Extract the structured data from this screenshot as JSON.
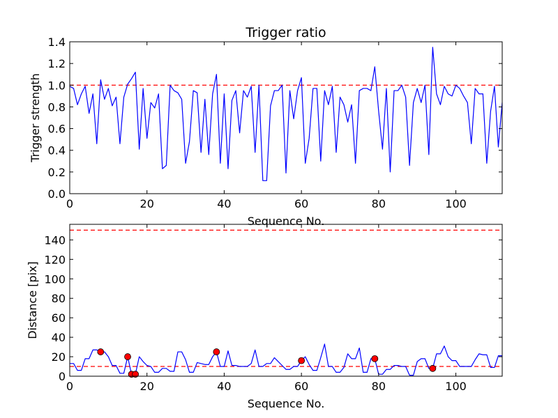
{
  "chart_data": [
    {
      "type": "line",
      "title": "Trigger ratio",
      "xlabel": "Sequence No.",
      "ylabel": "Trigger strength",
      "xlim": [
        0,
        112
      ],
      "ylim": [
        0,
        1.4
      ],
      "xticks": [
        "0",
        "20",
        "40",
        "60",
        "80",
        "100"
      ],
      "yticks": [
        "0.0",
        "0.2",
        "0.4",
        "0.6",
        "0.8",
        "1.0",
        "1.2",
        "1.4"
      ],
      "line_color": "#0000ff",
      "threshold": {
        "value": 1.0,
        "color": "#ff0000",
        "style": "dashed"
      },
      "series": [
        {
          "x": [
            0,
            1,
            2,
            3,
            4,
            5,
            6,
            7,
            8,
            9,
            10,
            11,
            12,
            13,
            14,
            15,
            16,
            17,
            18,
            19,
            20,
            21,
            22,
            23,
            24,
            25,
            26,
            27,
            28,
            29,
            30,
            31,
            32,
            33,
            34,
            35,
            36,
            37,
            38,
            39,
            40,
            41,
            42,
            43,
            44,
            45,
            46,
            47,
            48,
            49,
            50,
            51,
            52,
            53,
            54,
            55,
            56,
            57,
            58,
            59,
            60,
            61,
            62,
            63,
            64,
            65,
            66,
            67,
            68,
            69,
            70,
            71,
            72,
            73,
            74,
            75,
            76,
            77,
            78,
            79,
            80,
            81,
            82,
            83,
            84,
            85,
            86,
            87,
            88,
            89,
            90,
            91,
            92,
            93,
            94,
            95,
            96,
            97,
            98,
            99,
            100,
            101,
            102,
            103,
            104,
            105,
            106,
            107,
            108,
            109,
            110,
            111,
            112
          ],
          "y": [
            0.99,
            0.97,
            0.82,
            0.92,
            0.99,
            0.74,
            0.92,
            0.46,
            1.05,
            0.87,
            0.97,
            0.81,
            0.89,
            0.46,
            0.89,
            1.01,
            1.06,
            1.12,
            0.41,
            0.97,
            0.51,
            0.84,
            0.79,
            0.92,
            0.23,
            0.26,
            1.0,
            0.95,
            0.93,
            0.87,
            0.28,
            0.48,
            0.95,
            0.93,
            0.38,
            0.87,
            0.36,
            0.92,
            1.1,
            0.28,
            0.92,
            0.23,
            0.86,
            0.95,
            0.56,
            0.95,
            0.89,
            0.99,
            0.38,
            1.0,
            0.12,
            0.12,
            0.81,
            0.95,
            0.95,
            1.0,
            0.19,
            0.95,
            0.69,
            0.95,
            1.07,
            0.28,
            0.51,
            0.97,
            0.97,
            0.3,
            0.95,
            0.82,
            0.99,
            0.38,
            0.89,
            0.82,
            0.66,
            0.82,
            0.28,
            0.95,
            0.97,
            0.97,
            0.95,
            1.17,
            0.76,
            0.41,
            0.97,
            0.2,
            0.95,
            0.95,
            1.0,
            0.89,
            0.26,
            0.84,
            0.97,
            0.84,
            1.0,
            0.36,
            1.35,
            0.92,
            0.82,
            0.99,
            0.92,
            0.9,
            1.0,
            0.97,
            0.9,
            0.84,
            0.46,
            0.97,
            0.92,
            0.92,
            0.28,
            0.76,
            0.99,
            0.43,
            0.84
          ]
        }
      ]
    },
    {
      "type": "line",
      "title": "",
      "xlabel": "Sequence No.",
      "ylabel": "Distance [pix]",
      "xlim": [
        0,
        112
      ],
      "ylim": [
        0,
        156
      ],
      "xticks": [
        "0",
        "20",
        "40",
        "60",
        "80",
        "100"
      ],
      "yticks": [
        "0",
        "20",
        "40",
        "60",
        "80",
        "100",
        "120",
        "140"
      ],
      "line_color": "#0000ff",
      "thresholds": [
        {
          "value": 150,
          "color": "#ff0000",
          "style": "dashed"
        },
        {
          "value": 10,
          "color": "#ff0000",
          "style": "dashed"
        }
      ],
      "series": [
        {
          "x": [
            0,
            1,
            2,
            3,
            4,
            5,
            6,
            7,
            8,
            9,
            10,
            11,
            12,
            13,
            14,
            15,
            16,
            17,
            18,
            19,
            20,
            21,
            22,
            23,
            24,
            25,
            26,
            27,
            28,
            29,
            30,
            31,
            32,
            33,
            34,
            35,
            36,
            37,
            38,
            39,
            40,
            41,
            42,
            43,
            44,
            45,
            46,
            47,
            48,
            49,
            50,
            51,
            52,
            53,
            54,
            55,
            56,
            57,
            58,
            59,
            60,
            61,
            62,
            63,
            64,
            65,
            66,
            67,
            68,
            69,
            70,
            71,
            72,
            73,
            74,
            75,
            76,
            77,
            78,
            79,
            80,
            81,
            82,
            83,
            84,
            85,
            86,
            87,
            88,
            89,
            90,
            91,
            92,
            93,
            94,
            95,
            96,
            97,
            98,
            99,
            100,
            101,
            102,
            103,
            104,
            105,
            106,
            107,
            108,
            109,
            110,
            111,
            112
          ],
          "y": [
            13,
            13,
            6,
            6,
            18,
            18,
            27,
            27,
            25,
            25,
            20,
            11,
            11,
            3,
            3,
            20,
            2,
            2,
            20,
            15,
            11,
            10,
            4,
            4,
            8,
            8,
            5,
            5,
            25,
            25,
            17,
            4,
            4,
            14,
            13,
            12,
            12,
            20,
            25,
            10,
            10,
            26,
            11,
            11,
            10,
            10,
            10,
            13,
            27,
            10,
            10,
            13,
            13,
            19,
            15,
            11,
            7,
            7,
            10,
            10,
            16,
            20,
            12,
            6,
            6,
            19,
            33,
            10,
            10,
            4,
            4,
            9,
            23,
            18,
            18,
            29,
            4,
            4,
            18,
            18,
            2,
            2,
            7,
            7,
            11,
            11,
            10,
            10,
            1,
            1,
            15,
            18,
            18,
            8,
            8,
            23,
            23,
            31,
            20,
            16,
            16,
            10,
            10,
            10,
            10,
            17,
            23,
            22,
            22,
            9,
            9,
            21,
            21
          ]
        }
      ],
      "markers": {
        "color": "#ff0000",
        "points": [
          {
            "x": 8,
            "y": 25
          },
          {
            "x": 15,
            "y": 20
          },
          {
            "x": 16,
            "y": 2
          },
          {
            "x": 17,
            "y": 2
          },
          {
            "x": 38,
            "y": 25
          },
          {
            "x": 60,
            "y": 16
          },
          {
            "x": 79,
            "y": 18
          },
          {
            "x": 94,
            "y": 8
          }
        ]
      }
    }
  ]
}
